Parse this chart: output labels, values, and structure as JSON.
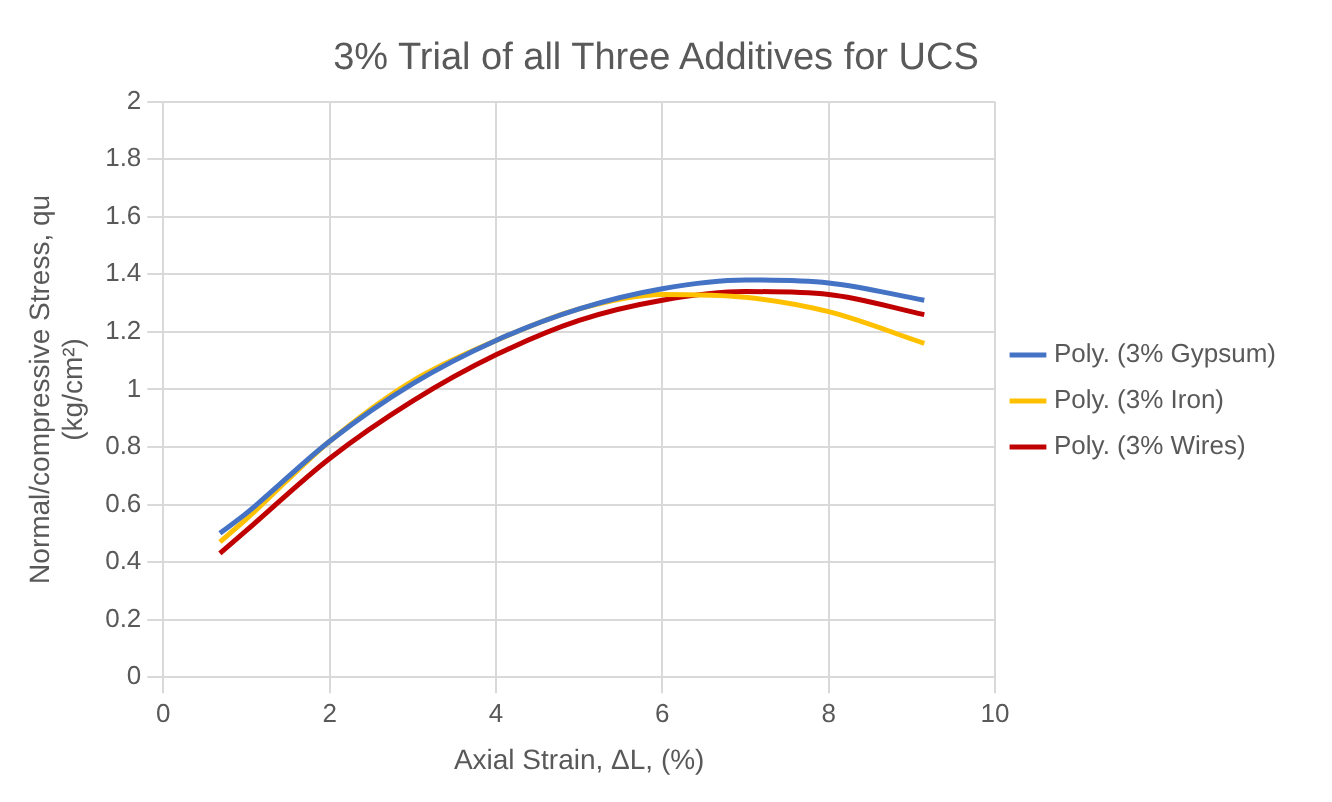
{
  "chart_data": {
    "type": "line",
    "title": "3% Trial of all Three Additives for UCS",
    "xlabel": "Axial Strain, ΔL, (%)",
    "ylabel": "Normal/compressive Stress, qu\n(kg/cm²)",
    "x": [
      0.68,
      1,
      2,
      3,
      4,
      5,
      6,
      7,
      8,
      9.15
    ],
    "series": [
      {
        "name": "Poly. (3% Gypsum)",
        "color": "#4472c4",
        "values": [
          0.5,
          0.57,
          0.82,
          1.02,
          1.17,
          1.28,
          1.35,
          1.38,
          1.37,
          1.31
        ]
      },
      {
        "name": "Poly. (3% Iron)",
        "color": "#ffc000",
        "values": [
          0.47,
          0.55,
          0.82,
          1.03,
          1.17,
          1.28,
          1.33,
          1.32,
          1.27,
          1.16
        ]
      },
      {
        "name": "Poly. (3% Wires)",
        "color": "#c00000",
        "values": [
          0.43,
          0.51,
          0.76,
          0.96,
          1.12,
          1.24,
          1.31,
          1.34,
          1.33,
          1.26
        ]
      }
    ],
    "xlim": [
      0,
      10
    ],
    "xticks": [
      0,
      2,
      4,
      6,
      8,
      10
    ],
    "ylim": [
      0,
      2
    ],
    "yticks": [
      0,
      0.2,
      0.4,
      0.6,
      0.8,
      1,
      1.2,
      1.4,
      1.6,
      1.8,
      2
    ],
    "grid": true,
    "legend": "right",
    "marker": "none",
    "line_style": "solid"
  }
}
